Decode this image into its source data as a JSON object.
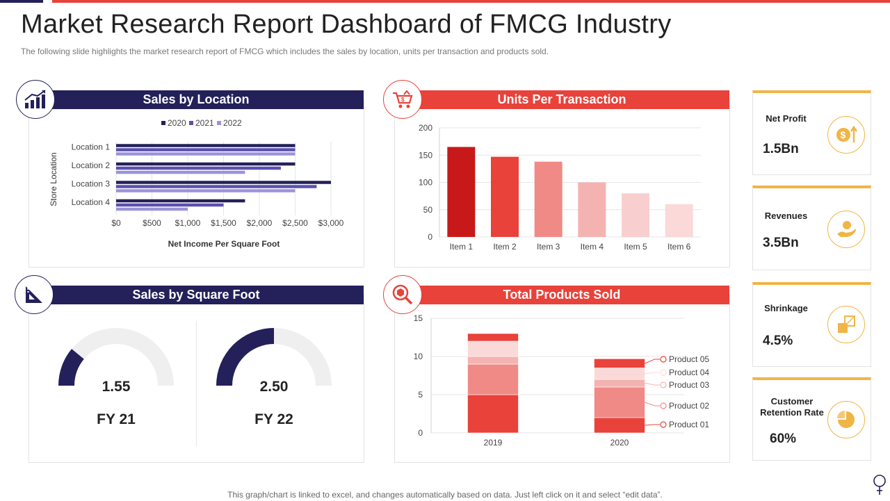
{
  "title": "Market Research Report Dashboard of FMCG Industry",
  "subtitle": "The following  slide highlights the market research report of FMCG which includes the sales by location, units per transaction and products sold.",
  "footer": "This graph/chart is linked to excel,  and changes automatically based on data. Just left click on it and select “edit data”.",
  "colors": {
    "navy": "#23205a",
    "red": "#e8423a",
    "gold": "#f0b545"
  },
  "panels": {
    "sales_by_location": {
      "title": "Sales by Location",
      "icon": "growth-chart-icon"
    },
    "units_per_transaction": {
      "title": "Units Per Transaction",
      "icon": "shopping-cart-icon"
    },
    "sales_by_square_foot": {
      "title": "Sales by Square Foot",
      "icon": "set-square-icon"
    },
    "total_products_sold": {
      "title": "Total Products Sold",
      "icon": "magnifier-box-icon"
    }
  },
  "chart_data": [
    {
      "type": "bar",
      "orientation": "horizontal",
      "title": "Sales by Location",
      "xlabel": "Net Income Per Square Foot",
      "ylabel": "Store Location",
      "categories": [
        "Location 1",
        "Location 2",
        "Location 3",
        "Location 4"
      ],
      "series": [
        {
          "name": "2020",
          "color": "#23205a",
          "values": [
            2500,
            2500,
            3000,
            1800
          ]
        },
        {
          "name": "2021",
          "color": "#5a4fb0",
          "values": [
            2500,
            2300,
            2800,
            1500
          ]
        },
        {
          "name": "2022",
          "color": "#9b93d8",
          "values": [
            2500,
            1800,
            2500,
            1000
          ]
        }
      ],
      "xlim": [
        0,
        3000
      ],
      "xticks": [
        "$0",
        "$500",
        "$1,000",
        "$1,500",
        "$2,000",
        "$2,500",
        "$3,000"
      ],
      "legend": "top"
    },
    {
      "type": "bar",
      "title": "Units Per Transaction",
      "categories": [
        "Item 1",
        "Item 2",
        "Item 3",
        "Item 4",
        "Item 5",
        "Item 6"
      ],
      "values": [
        165,
        147,
        138,
        100,
        80,
        60
      ],
      "colors": [
        "#c8191a",
        "#e8423a",
        "#f08a86",
        "#f4b3b1",
        "#f8cfce",
        "#fad9d8"
      ],
      "ylim": [
        0,
        200
      ],
      "yticks": [
        "0",
        "50",
        "100",
        "150",
        "200"
      ],
      "grid": true
    },
    {
      "type": "gauge",
      "title": "Sales by Square Foot",
      "gauges": [
        {
          "value": 1.55,
          "label": "1.55",
          "period": "FY 21",
          "fill_fraction": 0.22
        },
        {
          "value": 2.5,
          "label": "2.50",
          "period": "FY 22",
          "fill_fraction": 0.5
        }
      ]
    },
    {
      "type": "bar",
      "stacked": true,
      "title": "Total Products Sold",
      "categories": [
        "2019",
        "2020"
      ],
      "series": [
        {
          "name": "Product 01",
          "color": "#e8423a",
          "values": [
            5,
            2
          ]
        },
        {
          "name": "Product 02",
          "color": "#f08a86",
          "values": [
            4,
            4
          ]
        },
        {
          "name": "Product 03",
          "color": "#f4b3b1",
          "values": [
            1,
            1
          ]
        },
        {
          "name": "Product 04",
          "color": "#fad9d8",
          "values": [
            2,
            1.5
          ]
        },
        {
          "name": "Product 05",
          "color": "#e8423a",
          "values": [
            1,
            1.2
          ]
        }
      ],
      "ylim": [
        0,
        15
      ],
      "yticks": [
        "0",
        "5",
        "10",
        "15"
      ],
      "legend": "right"
    }
  ],
  "kpis": [
    {
      "label": "Net Profit",
      "value": "1.5Bn",
      "icon": "dollar-up-icon"
    },
    {
      "label": "Revenues",
      "value": "3.5Bn",
      "icon": "hand-money-icon"
    },
    {
      "label": "Shrinkage",
      "value": "4.5%",
      "icon": "shrink-arrow-icon"
    },
    {
      "label": "Customer Retention Rate",
      "value": "60%",
      "icon": "pie-chart-icon"
    }
  ]
}
